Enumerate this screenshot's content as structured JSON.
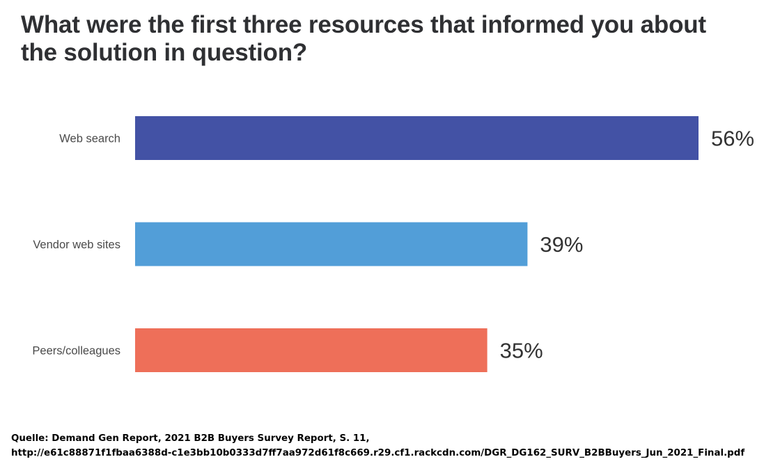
{
  "title_lines": [
    "What were the first three resources that informed you about",
    "the solution in question?"
  ],
  "source_lines": [
    "Quelle: Demand Gen Report, 2021 B2B Buyers Survey Report, S. 11,",
    "http://e61c88871f1fbaa6388d-c1e3bb10b0333d7ff7aa972d61f8c669.r29.cf1.rackcdn.com/DGR_DG162_SURV_B2BBuyers_Jun_2021_Final.pdf"
  ],
  "chart_data": {
    "type": "bar",
    "orientation": "horizontal",
    "categories": [
      "Web search",
      "Vendor web sites",
      "Peers/colleagues"
    ],
    "values": [
      56,
      39,
      35
    ],
    "value_labels": [
      "56%",
      "39%",
      "35%"
    ],
    "colors": [
      "#4352a5",
      "#529ed8",
      "#ee6f59"
    ],
    "xlim": [
      0,
      56
    ],
    "grid": false,
    "legend": "none"
  }
}
